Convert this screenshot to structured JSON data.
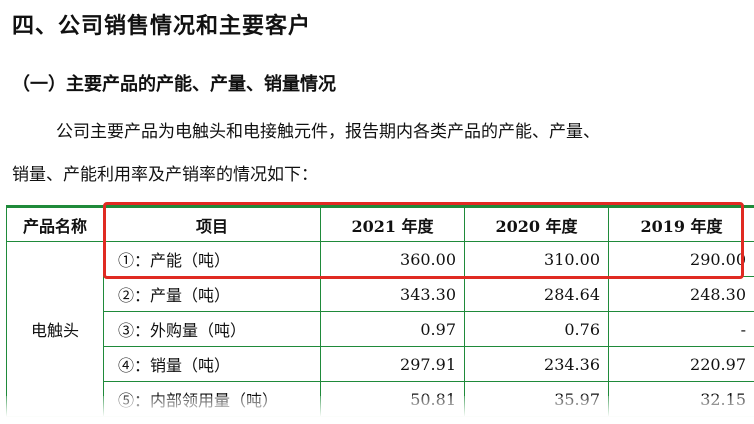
{
  "section_title": "四、公司销售情况和主要客户",
  "subsection_title": "（一）主要产品的产能、产量、销量情况",
  "paragraph_line1": "公司主要产品为电触头和电接触元件，报告期内各类产品的产能、产量、",
  "paragraph_line2": "销量、产能利用率及产销率的情况如下：",
  "table": {
    "headers": [
      "产品名称",
      "项目",
      "2021 年度",
      "2020 年度",
      "2019 年度"
    ],
    "product_name": "电触头",
    "rows": [
      {
        "item": "①：产能（吨）",
        "y2021": "360.00",
        "y2020": "310.00",
        "y2019": "290.00"
      },
      {
        "item": "②：产量（吨）",
        "y2021": "343.30",
        "y2020": "284.64",
        "y2019": "248.30"
      },
      {
        "item": "③：外购量（吨）",
        "y2021": "0.97",
        "y2020": "0.76",
        "y2019": "-"
      },
      {
        "item": "④：销量（吨）",
        "y2021": "297.91",
        "y2020": "234.36",
        "y2019": "220.97"
      },
      {
        "item": "⑤：内部领用量（吨）",
        "y2021": "50.81",
        "y2020": "35.97",
        "y2019": "32.15"
      }
    ]
  },
  "colors": {
    "table_border": "#1f8a3a",
    "highlight_box": "#e02a22"
  }
}
